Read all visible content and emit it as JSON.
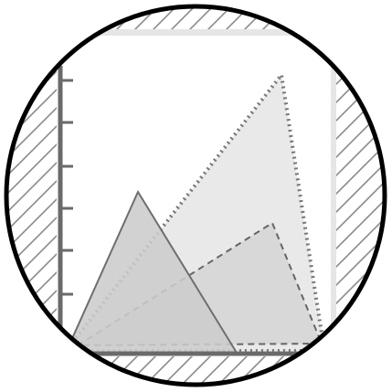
{
  "icon": {
    "name": "area-chart-magnifier-icon",
    "shapes": [
      {
        "name": "large-dotted-triangle",
        "fill": "#e9e9e9",
        "stroke": "#777777",
        "style": "dotted"
      },
      {
        "name": "medium-dashed-triangle",
        "fill": "#d8d8d8",
        "stroke": "#666666",
        "style": "dashed"
      },
      {
        "name": "small-solid-triangle",
        "fill": "#cccccc",
        "stroke": "#6e6e6e",
        "style": "solid"
      }
    ],
    "axis_color": "#6a6a6a",
    "hatch_color": "#8a8a8a",
    "ring_color": "#000000",
    "background": "#ffffff"
  }
}
